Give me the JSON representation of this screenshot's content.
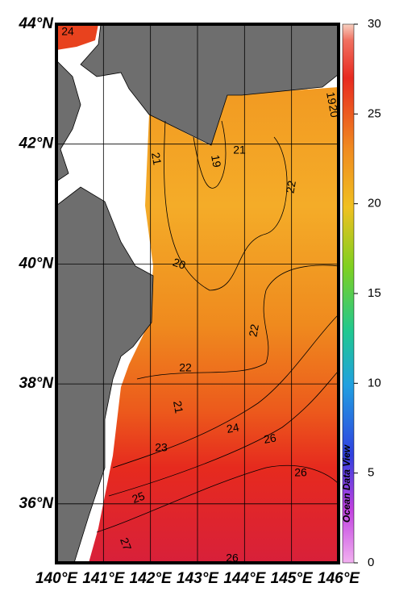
{
  "map": {
    "lat_labels": [
      "44°N",
      "42°N",
      "40°N",
      "38°N",
      "36°N"
    ],
    "lon_labels": [
      "140°E",
      "141°E",
      "142°E",
      "143°E",
      "144°E",
      "145°E",
      "146°E"
    ],
    "colorbar": {
      "lim": [
        0,
        30
      ],
      "ticks": [
        0,
        5,
        10,
        15,
        20,
        25,
        30
      ]
    },
    "contour_labels": [
      24,
      19,
      20,
      21,
      19,
      21,
      22,
      20,
      22,
      22,
      21,
      23,
      24,
      26,
      26,
      25,
      27,
      26
    ],
    "watermark": "Ocean Data View"
  }
}
